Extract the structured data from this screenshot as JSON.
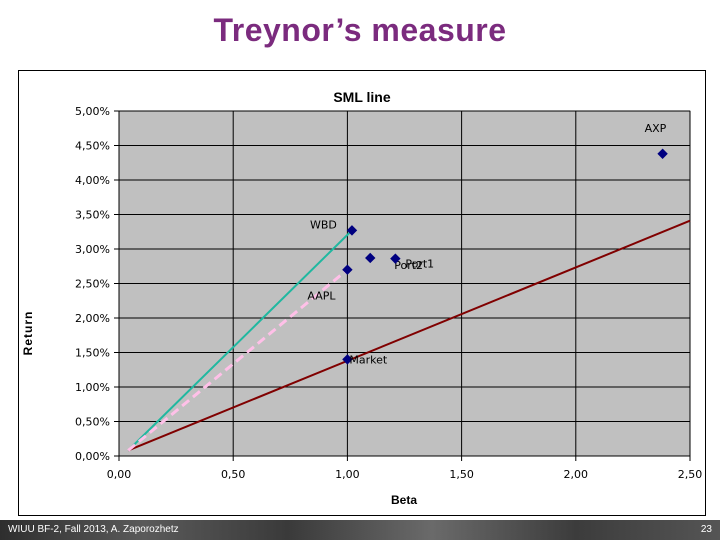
{
  "slide": {
    "title": "Treynor’s measure",
    "footer_left": "WIUU BF-2, Fall 2013, A. Zaporozhetz",
    "footer_right": "23"
  },
  "chart_data": {
    "type": "scatter",
    "title": "SML line",
    "xlabel": "Beta",
    "ylabel": "Return",
    "xlim": [
      0,
      2.5
    ],
    "ylim": [
      0,
      0.05
    ],
    "x_ticks": [
      "0,00",
      "0,50",
      "1,00",
      "1,50",
      "2,00",
      "2,50"
    ],
    "y_ticks": [
      "0,00%",
      "0,50%",
      "1,00%",
      "1,50%",
      "2,00%",
      "2,50%",
      "3,00%",
      "3,50%",
      "4,00%",
      "4,50%",
      "5,00%"
    ],
    "grid": true,
    "plot_background": "#c0c0c0",
    "points": [
      {
        "label": "AXP",
        "x": 2.38,
        "y": 0.0438
      },
      {
        "label": "WBD",
        "x": 1.02,
        "y": 0.0327
      },
      {
        "label": "Port2",
        "x": 1.1,
        "y": 0.0287
      },
      {
        "label": "Port1",
        "x": 1.21,
        "y": 0.0286
      },
      {
        "label": "AAPL",
        "x": 1.0,
        "y": 0.027
      },
      {
        "label": "Market",
        "x": 1.0,
        "y": 0.014
      }
    ],
    "point_color": "#000080",
    "lines": [
      {
        "x": [
          0.04,
          2.5
        ],
        "y": [
          0.0008,
          0.0341
        ],
        "color": "#800000",
        "style": "solid"
      },
      {
        "x": [
          0.04,
          1.02
        ],
        "y": [
          0.0008,
          0.0327
        ],
        "color": "#20b8a0",
        "style": "solid"
      },
      {
        "x": [
          0.04,
          1.0
        ],
        "y": [
          0.0008,
          0.027
        ],
        "color": "#ffc0e8",
        "style": "dashed"
      }
    ]
  }
}
